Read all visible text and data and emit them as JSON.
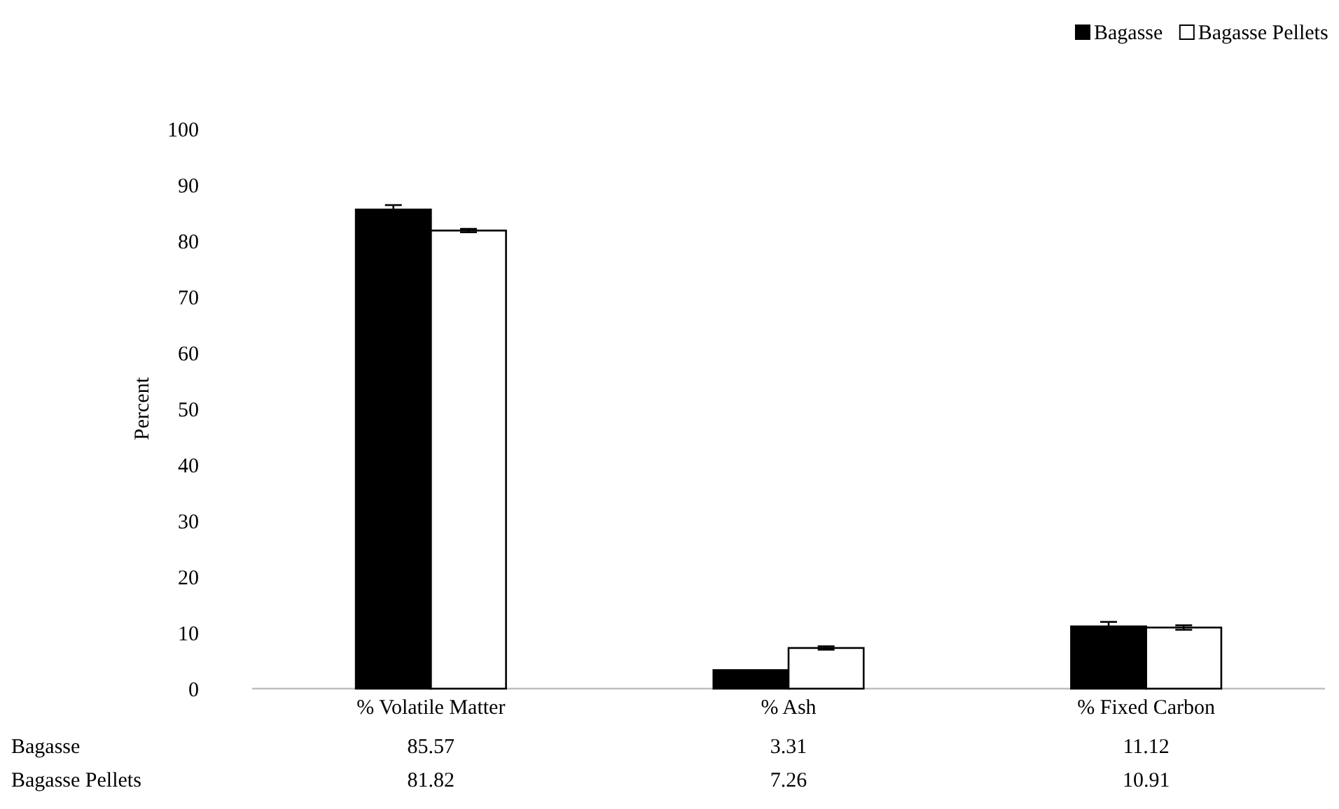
{
  "chart_data": {
    "type": "bar",
    "ylabel": "Percent",
    "categories": [
      "% Volatile Matter",
      "% Ash",
      "% Fixed Carbon"
    ],
    "series": [
      {
        "name": "Bagasse",
        "color": "#000000",
        "values": [
          85.57,
          3.31,
          11.12
        ],
        "errors": [
          0.8,
          null,
          0.8
        ]
      },
      {
        "name": "Bagasse Pellets",
        "color": "#ffffff",
        "values": [
          81.82,
          7.26,
          10.91
        ],
        "errors": [
          0.3,
          0.3,
          0.4
        ]
      }
    ],
    "ylim": [
      0,
      100
    ],
    "yticks": [
      0,
      10,
      20,
      30,
      40,
      50,
      60,
      70,
      80,
      90,
      100
    ],
    "grid": false,
    "legend": "top right",
    "data_labels": true
  }
}
